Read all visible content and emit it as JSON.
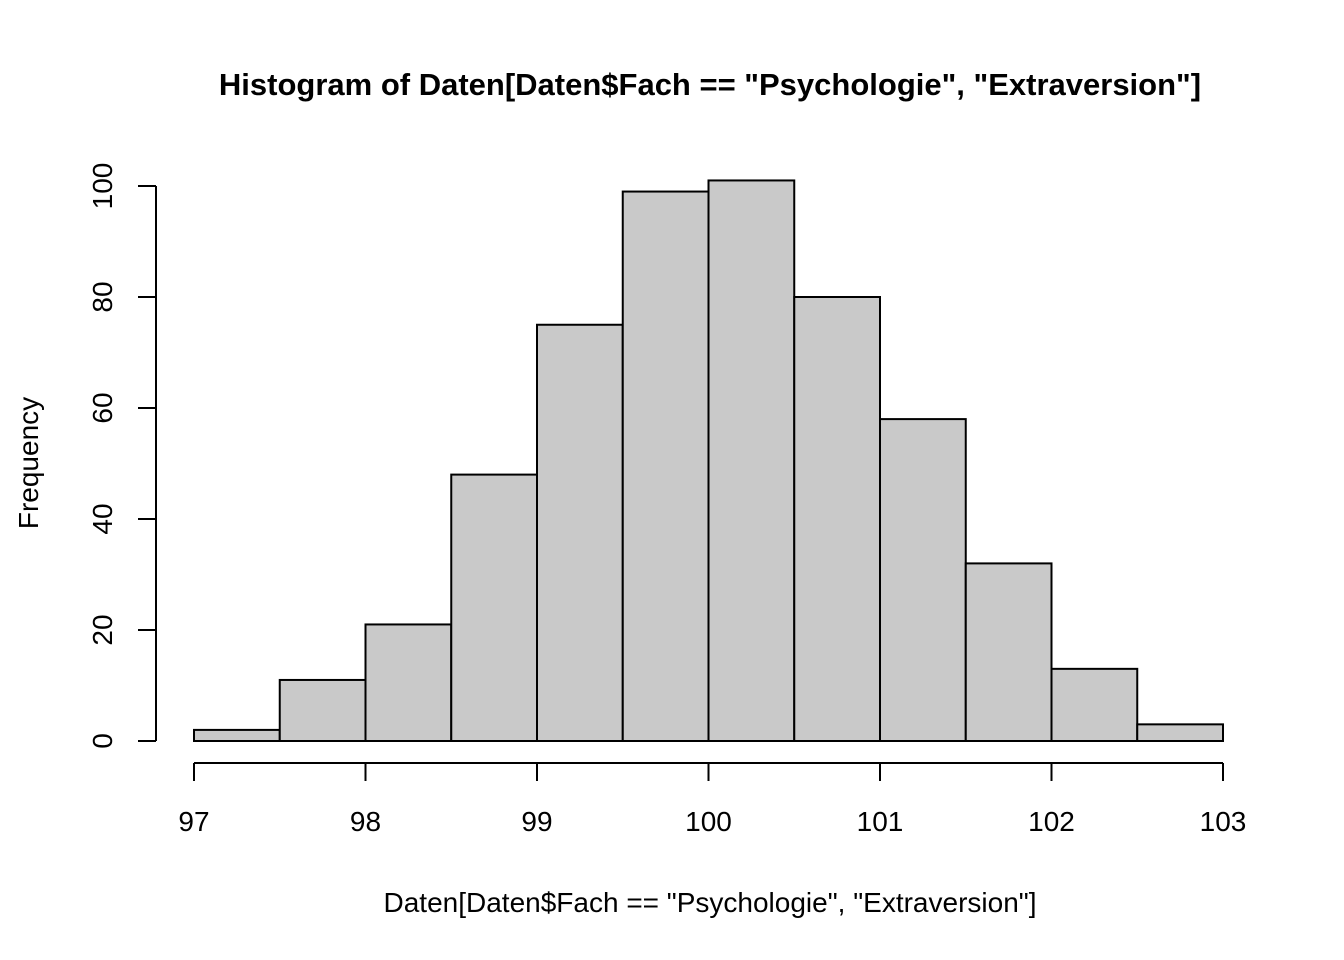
{
  "figure": {
    "background": "#FFFFFF"
  },
  "chart_data": {
    "type": "bar",
    "subtype": "histogram",
    "title": "Histogram of Daten[Daten$Fach == \"Psychologie\", \"Extraversion\"]",
    "xlabel": "Daten[Daten$Fach == \"Psychologie\", \"Extraversion\"]",
    "ylabel": "Frequency",
    "bin_start": 97,
    "bin_width": 0.5,
    "counts": [
      2,
      11,
      21,
      48,
      75,
      99,
      101,
      80,
      58,
      32,
      13,
      3
    ],
    "x_ticks": [
      97,
      98,
      99,
      100,
      101,
      102,
      103
    ],
    "y_ticks": [
      0,
      20,
      40,
      60,
      80,
      100
    ],
    "xlim": [
      97,
      103
    ],
    "ylim": [
      0,
      100
    ],
    "grid": false,
    "legend": null,
    "colors": {
      "bar_fill": "#C9C9C9",
      "bar_border": "#000000",
      "axis": "#000000",
      "text": "#000000"
    }
  }
}
